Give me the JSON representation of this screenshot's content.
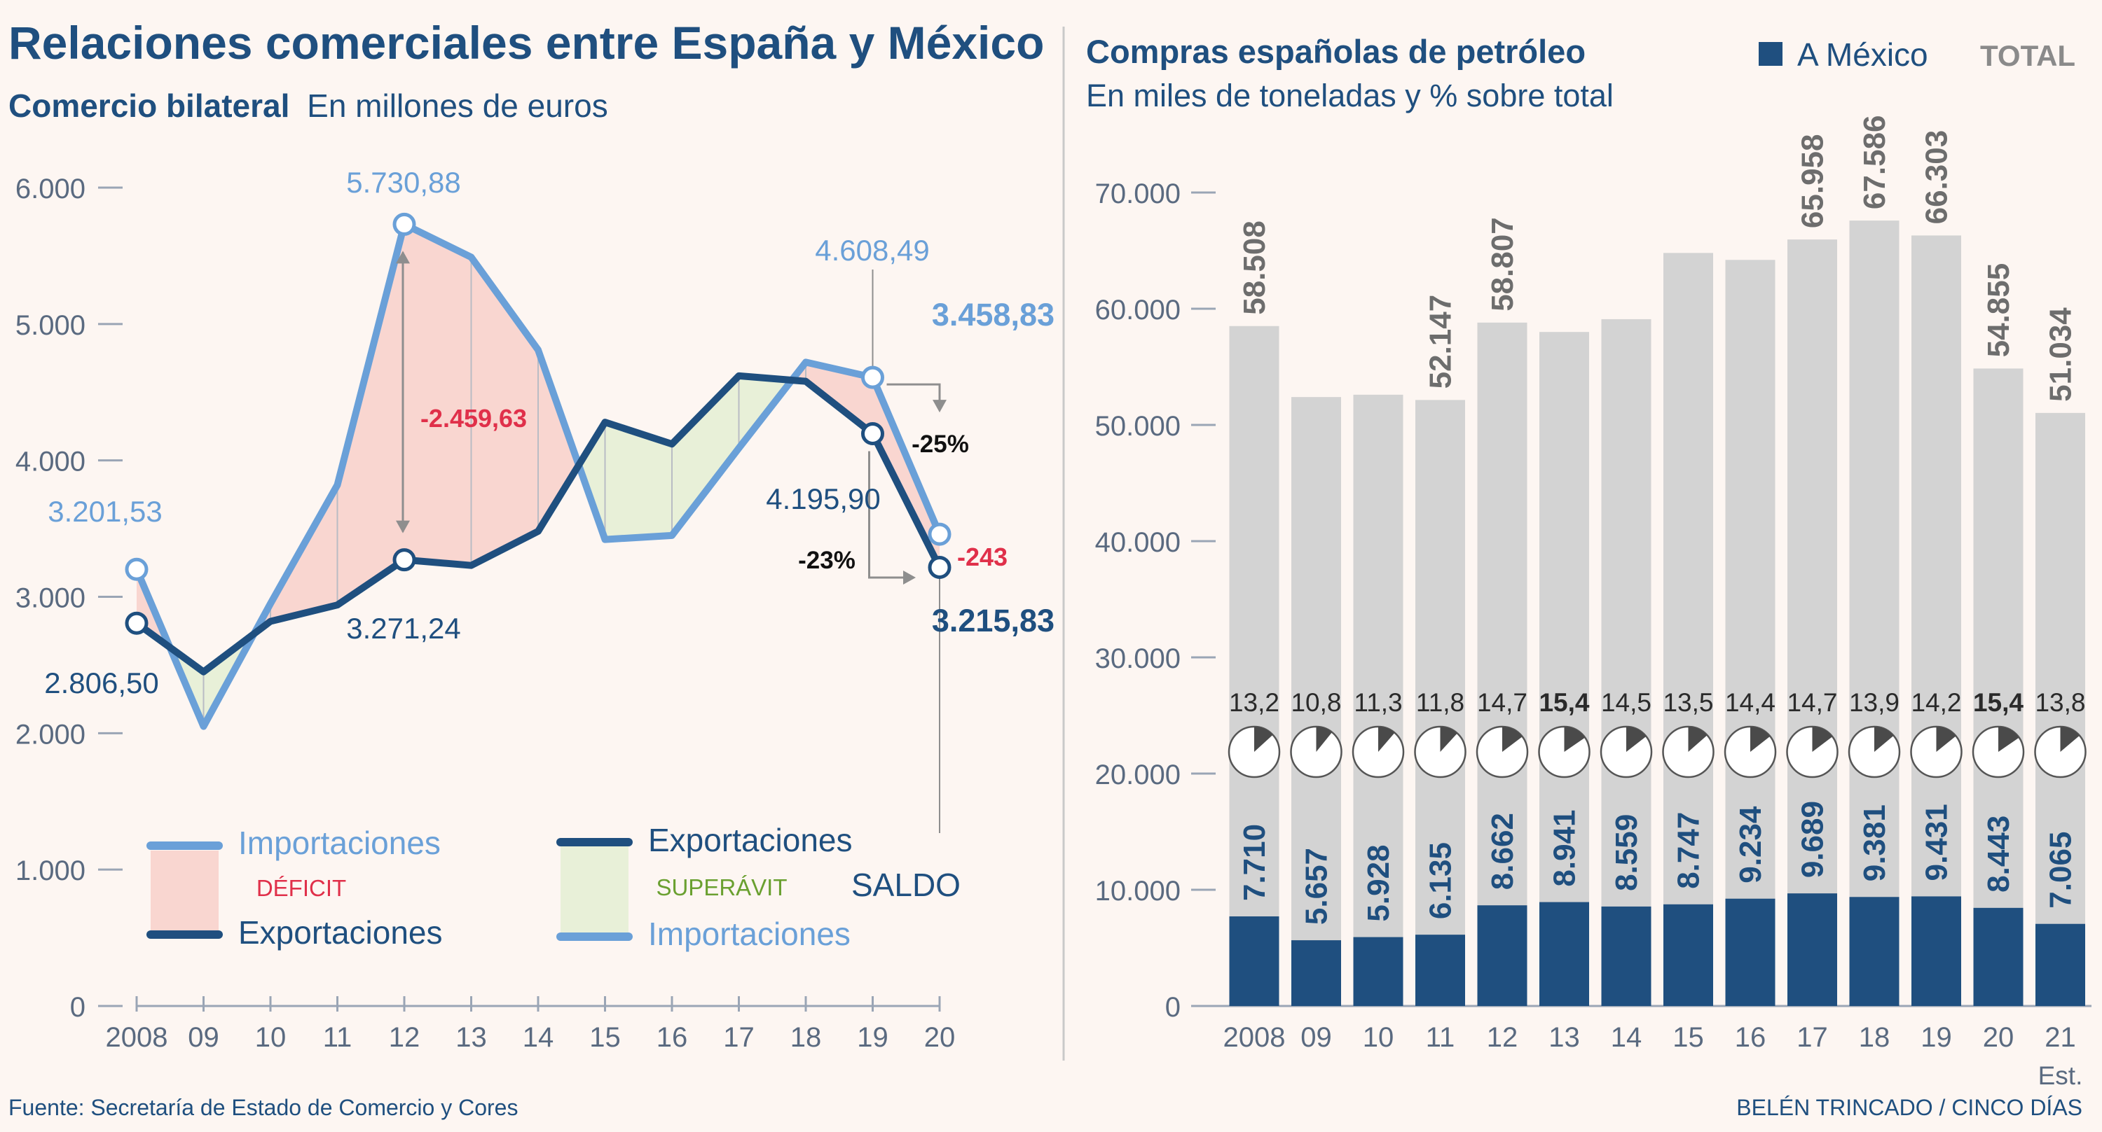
{
  "header": {
    "title": "Relaciones comerciales entre España y México",
    "left_subtitle_bold": "Comercio bilateral",
    "left_subtitle_rest": "En millones de euros",
    "right_title": "Compras españolas de petróleo",
    "right_subtitle": "En miles de toneladas y % sobre total"
  },
  "footer": {
    "source": "Fuente: Secretaría de Estado de Comercio y Cores",
    "credit": "BELÉN TRINCADO / CINCO DÍAS"
  },
  "colors": {
    "background": "#fdf6f2",
    "imports": "#6aa0d8",
    "exports": "#1f4f7f",
    "deficit_fill": "#f9d6d0",
    "surplus_fill": "#e8f0d8",
    "total_bar": "#d3d3d3",
    "mexico_bar": "#1f4f7f",
    "deficit_text": "#e0304a",
    "surplus_text": "#6aa030"
  },
  "legend": {
    "left": {
      "imports_1": "Importaciones",
      "deficit": "DÉFICIT",
      "exports_1": "Exportaciones",
      "exports_2": "Exportaciones",
      "surplus": "SUPERÁVIT",
      "balance": "SALDO",
      "imports_2": "Importaciones"
    },
    "right": {
      "mexico": "A México",
      "total": "TOTAL"
    }
  },
  "annotations": {
    "imports_2008": "3.201,53",
    "exports_2008": "2.806,50",
    "imports_2012": "5.730,88",
    "exports_2012": "3.271,24",
    "gap_2012": "-2.459,63",
    "imports_2019": "4.608,49",
    "exports_2019": "4.195,90",
    "imports_2020": "3.458,83",
    "exports_2020": "3.215,83",
    "imports_change": "-25%",
    "exports_change": "-23%",
    "balance_2020": "-243"
  },
  "chart_data": [
    {
      "type": "line",
      "title": "Comercio bilateral",
      "ylabel": "En millones de euros",
      "x": [
        "2008",
        "09",
        "10",
        "11",
        "12",
        "13",
        "14",
        "15",
        "16",
        "17",
        "18",
        "19",
        "20"
      ],
      "ylim": [
        0,
        6000
      ],
      "yticks": [
        0,
        1000,
        2000,
        3000,
        4000,
        5000,
        6000
      ],
      "ytick_labels": [
        "0",
        "1.000",
        "2.000",
        "3.000",
        "4.000",
        "5.000",
        "6.000"
      ],
      "series": [
        {
          "name": "Importaciones",
          "values": [
            3201.53,
            2050,
            2950,
            3820,
            5730.88,
            5490,
            4810,
            3420,
            3450,
            4090,
            4720,
            4608.49,
            3458.83
          ]
        },
        {
          "name": "Exportaciones",
          "values": [
            2806.5,
            2450,
            2820,
            2940,
            3271.24,
            3230,
            3480,
            4280,
            4120,
            4620,
            4580,
            4195.9,
            3215.83
          ]
        }
      ]
    },
    {
      "type": "bar",
      "title": "Compras españolas de petróleo",
      "ylabel": "En miles de toneladas y % sobre total",
      "categories": [
        "2008",
        "09",
        "10",
        "11",
        "12",
        "13",
        "14",
        "15",
        "16",
        "17",
        "18",
        "19",
        "20",
        "21"
      ],
      "category_note": "Est.",
      "ylim": [
        0,
        70000
      ],
      "yticks": [
        0,
        10000,
        20000,
        30000,
        40000,
        50000,
        60000,
        70000
      ],
      "ytick_labels": [
        "0",
        "10.000",
        "20.000",
        "30.000",
        "40.000",
        "50.000",
        "60.000",
        "70.000"
      ],
      "series": [
        {
          "name": "TOTAL",
          "values": [
            58508,
            52400,
            52600,
            52147,
            58807,
            58000,
            59100,
            64800,
            64200,
            65958,
            67586,
            66303,
            54855,
            51034
          ]
        },
        {
          "name": "A México",
          "values": [
            7710,
            5657,
            5928,
            6135,
            8662,
            8941,
            8559,
            8747,
            9234,
            9689,
            9381,
            9431,
            8443,
            7065
          ]
        }
      ],
      "total_labels": [
        "58.508",
        "",
        "",
        "52.147",
        "58.807",
        "",
        "",
        "",
        "",
        "65.958",
        "67.586",
        "66.303",
        "54.855",
        "51.034"
      ],
      "mexico_labels": [
        "7.710",
        "5.657",
        "5.928",
        "6.135",
        "8.662",
        "8.941",
        "8.559",
        "8.747",
        "9.234",
        "9.689",
        "9.381",
        "9.431",
        "8.443",
        "7.065"
      ],
      "share_pct": [
        13.2,
        10.8,
        11.3,
        11.8,
        14.7,
        15.4,
        14.5,
        13.5,
        14.4,
        14.7,
        13.9,
        14.2,
        15.4,
        13.8
      ],
      "share_labels": [
        "13,2",
        "10,8",
        "11,3",
        "11,8",
        "14,7",
        "15,4",
        "14,5",
        "13,5",
        "14,4",
        "14,7",
        "13,9",
        "14,2",
        "15,4",
        "13,8"
      ],
      "share_bold": [
        false,
        false,
        false,
        false,
        false,
        true,
        false,
        false,
        false,
        false,
        false,
        false,
        true,
        false
      ]
    }
  ]
}
